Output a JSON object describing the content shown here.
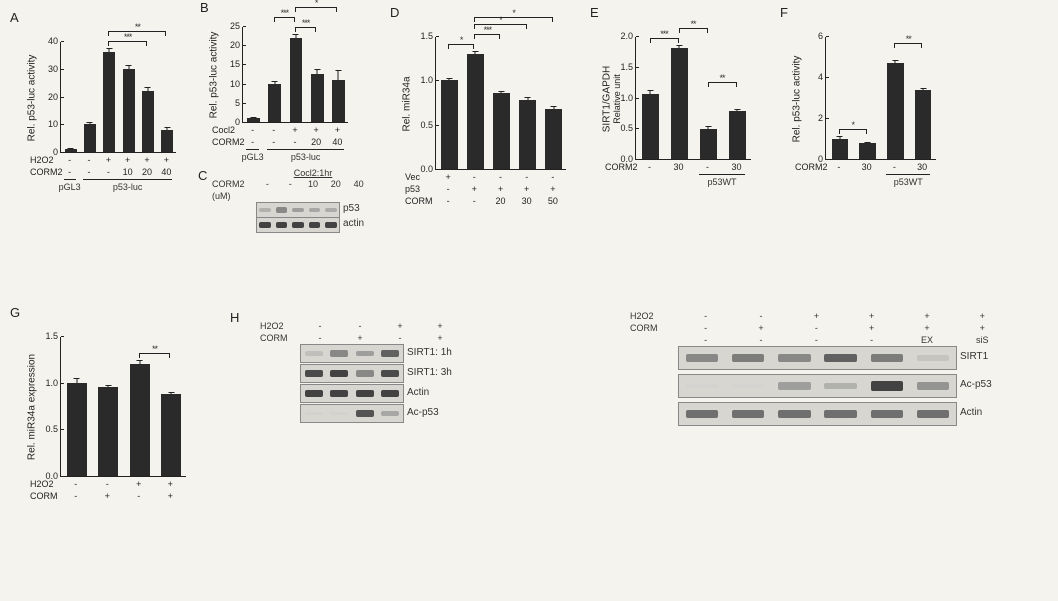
{
  "global": {
    "bar_color": "#2a2a2a",
    "axis_color": "#222222",
    "bg_color": "#f5f3ed",
    "font_family": "Arial",
    "sig_star": "*",
    "sig_star2": "**",
    "sig_star3": "***"
  },
  "A": {
    "label": "A",
    "type": "bar",
    "ylabel": "Rel. p53-luc activity",
    "ylim": [
      0,
      40
    ],
    "ytick_step": 10,
    "values": [
      1,
      10,
      36,
      30,
      22,
      8
    ],
    "errors": [
      0.3,
      0.8,
      1.5,
      1.2,
      1.5,
      1
    ],
    "xrow1_name": "H2O2",
    "xrow1": [
      "-",
      "-",
      "+",
      "+",
      "+",
      "+"
    ],
    "xrow2_name": "CORM2",
    "xrow2": [
      "-",
      "-",
      "-",
      "10",
      "20",
      "40"
    ],
    "xgroups": [
      {
        "label": "pGL3",
        "from": 0,
        "to": 0
      },
      {
        "label": "p53-luc",
        "from": 1,
        "to": 5
      }
    ],
    "sig": [
      {
        "from": 2,
        "to": 4,
        "stars": "***"
      },
      {
        "from": 2,
        "to": 5,
        "stars": "**"
      }
    ]
  },
  "B": {
    "label": "B",
    "type": "bar",
    "ylabel": "Rel. p53-luc activity",
    "ylim": [
      0,
      25
    ],
    "ytick_step": 5,
    "values": [
      1,
      10,
      22,
      12.5,
      11
    ],
    "errors": [
      0.2,
      0.6,
      1,
      1.2,
      2.5
    ],
    "xrow1_name": "Cocl2",
    "xrow1": [
      "-",
      "-",
      "+",
      "+",
      "+"
    ],
    "xrow2_name": "CORM2",
    "xrow2": [
      "-",
      "-",
      "-",
      "20",
      "40"
    ],
    "xgroups": [
      {
        "label": "pGL3",
        "from": 0,
        "to": 0
      },
      {
        "label": "p53-luc",
        "from": 1,
        "to": 4
      }
    ],
    "sig": [
      {
        "from": 2,
        "to": 3,
        "stars": "***"
      },
      {
        "from": 1,
        "to": 2,
        "stars": "***"
      },
      {
        "from": 2,
        "to": 4,
        "stars": "*"
      }
    ]
  },
  "C": {
    "label": "C",
    "type": "western",
    "title": "Cocl2:1hr",
    "row1_name": "CORM2",
    "row1_unit": "(uM)",
    "row1": [
      "-",
      "-",
      "10",
      "20",
      "40"
    ],
    "lanes": 5,
    "blots": [
      {
        "label": "p53",
        "intensity": [
          0.35,
          0.55,
          0.45,
          0.4,
          0.38
        ]
      },
      {
        "label": "actin",
        "intensity": [
          0.85,
          0.85,
          0.85,
          0.85,
          0.85
        ]
      }
    ],
    "band_colors": {
      "strong": "#2b2b2b",
      "medium": "#555555",
      "faint": "#8a8a8a"
    }
  },
  "D": {
    "label": "D",
    "type": "bar",
    "ylabel": "Rel. miR34a",
    "ylim": [
      0,
      1.5
    ],
    "ytick_step": 0.5,
    "values": [
      1.0,
      1.3,
      0.86,
      0.78,
      0.68
    ],
    "errors": [
      0.03,
      0.03,
      0.02,
      0.03,
      0.03
    ],
    "xrow1_name": "Vec",
    "xrow1": [
      "+",
      "-",
      "-",
      "-",
      "-"
    ],
    "xrow2_name": "p53",
    "xrow2": [
      "-",
      "+",
      "+",
      "+",
      "+"
    ],
    "xrow3_name": "CORM",
    "xrow3": [
      "-",
      "-",
      "20",
      "30",
      "50"
    ],
    "sig": [
      {
        "from": 0,
        "to": 1,
        "stars": "*"
      },
      {
        "from": 1,
        "to": 2,
        "stars": "***"
      },
      {
        "from": 1,
        "to": 3,
        "stars": "*"
      },
      {
        "from": 1,
        "to": 4,
        "stars": "*"
      }
    ]
  },
  "E": {
    "label": "E",
    "type": "bar",
    "ylabel": "SIRT1/GAPDH",
    "ylabel2": "Relative unit",
    "ylim": [
      0,
      2.0
    ],
    "ytick_step": 0.5,
    "values": [
      1.05,
      1.8,
      0.48,
      0.78
    ],
    "errors": [
      0.08,
      0.05,
      0.05,
      0.04
    ],
    "xrow1_name": "CORM2",
    "xrow1": [
      "-",
      "30",
      "-",
      "30"
    ],
    "xgroups": [
      {
        "label": "p53WT",
        "from": 2,
        "to": 3
      }
    ],
    "sig": [
      {
        "from": 0,
        "to": 1,
        "stars": "***"
      },
      {
        "from": 1,
        "to": 2,
        "stars": "**"
      },
      {
        "from": 2,
        "to": 3,
        "stars": "**"
      }
    ]
  },
  "F": {
    "label": "F",
    "type": "bar",
    "ylabel": "Rel. p53-luc activity",
    "ylim": [
      0,
      6
    ],
    "ytick_step": 2,
    "values": [
      1.0,
      0.8,
      4.7,
      3.35
    ],
    "errors": [
      0.1,
      0.05,
      0.15,
      0.1
    ],
    "xrow1_name": "CORM2",
    "xrow1": [
      "-",
      "30",
      "-",
      "30"
    ],
    "xgroups": [
      {
        "label": "p53WT",
        "from": 2,
        "to": 3
      }
    ],
    "sig": [
      {
        "from": 0,
        "to": 1,
        "stars": "*"
      },
      {
        "from": 2,
        "to": 3,
        "stars": "**"
      }
    ]
  },
  "G": {
    "label": "G",
    "type": "bar",
    "ylabel": "Rel. miR34a expression",
    "ylim": [
      0,
      1.5
    ],
    "ytick_step": 0.5,
    "values": [
      1.0,
      0.95,
      1.2,
      0.88
    ],
    "errors": [
      0.05,
      0.02,
      0.04,
      0.02
    ],
    "xrow1_name": "H2O2",
    "xrow1": [
      "-",
      "-",
      "+",
      "+"
    ],
    "xrow2_name": "CORM",
    "xrow2": [
      "-",
      "+",
      "-",
      "+"
    ],
    "sig": [
      {
        "from": 2,
        "to": 3,
        "stars": "**"
      }
    ]
  },
  "H": {
    "label": "H",
    "left": {
      "type": "western",
      "row1_name": "H2O2",
      "row1": [
        "-",
        "-",
        "+",
        "+"
      ],
      "row2_name": "CORM",
      "row2": [
        "-",
        "+",
        "-",
        "+"
      ],
      "lanes": 4,
      "blots": [
        {
          "label": "SIRT1: 1h",
          "intensity": [
            0.25,
            0.55,
            0.45,
            0.7
          ]
        },
        {
          "label": "SIRT1: 3h",
          "intensity": [
            0.8,
            0.85,
            0.55,
            0.8
          ]
        },
        {
          "label": "Actin",
          "intensity": [
            0.85,
            0.85,
            0.85,
            0.85
          ]
        },
        {
          "label": "Ac-p53",
          "intensity": [
            0.05,
            0.05,
            0.75,
            0.4
          ]
        }
      ]
    },
    "right": {
      "type": "western",
      "row1_name": "H2O2",
      "row1": [
        "-",
        "-",
        "+",
        "+",
        "+",
        "+"
      ],
      "row2_name": "CORM",
      "row2": [
        "-",
        "+",
        "-",
        "+",
        "+",
        "+"
      ],
      "row3_name": "",
      "row3": [
        "-",
        "-",
        "-",
        "-",
        "EX",
        "siS"
      ],
      "lanes": 6,
      "blots": [
        {
          "label": "SIRT1",
          "intensity": [
            0.55,
            0.6,
            0.55,
            0.7,
            0.6,
            0.2
          ]
        },
        {
          "label": "Ac-p53",
          "intensity": [
            0.03,
            0.03,
            0.45,
            0.35,
            0.85,
            0.5
          ]
        },
        {
          "label": "Actin",
          "intensity": [
            0.65,
            0.65,
            0.65,
            0.65,
            0.65,
            0.65
          ]
        }
      ]
    }
  }
}
